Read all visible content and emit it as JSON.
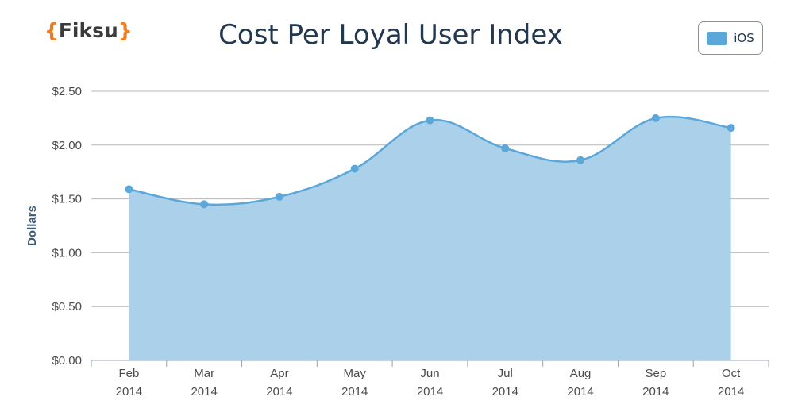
{
  "logo": {
    "open": "{",
    "text": "Fiksu",
    "close": "}"
  },
  "chart_data": {
    "type": "area",
    "title": "Cost Per Loyal User Index",
    "ylabel": "Dollars",
    "xlabel": "",
    "categories": [
      [
        "Feb",
        "2014"
      ],
      [
        "Mar",
        "2014"
      ],
      [
        "Apr",
        "2014"
      ],
      [
        "May",
        "2014"
      ],
      [
        "Jun",
        "2014"
      ],
      [
        "Jul",
        "2014"
      ],
      [
        "Aug",
        "2014"
      ],
      [
        "Sep",
        "2014"
      ],
      [
        "Oct",
        "2014"
      ]
    ],
    "series": [
      {
        "name": "iOS",
        "values": [
          1.59,
          1.45,
          1.52,
          1.78,
          2.23,
          1.97,
          1.86,
          2.25,
          2.16
        ]
      }
    ],
    "ylim": [
      0,
      2.5
    ],
    "yticks": [
      "$0.00",
      "$0.50",
      "$1.00",
      "$1.50",
      "$2.00",
      "$2.50"
    ],
    "ytick_values": [
      0,
      0.5,
      1.0,
      1.5,
      2.0,
      2.5
    ],
    "grid": true,
    "legend_position": "top-right",
    "colors": {
      "fill": "#abd1ea",
      "line": "#5ba7d9",
      "marker": "#5ba7d9",
      "grid": "#b7b7b7",
      "title": "#23384f"
    }
  }
}
